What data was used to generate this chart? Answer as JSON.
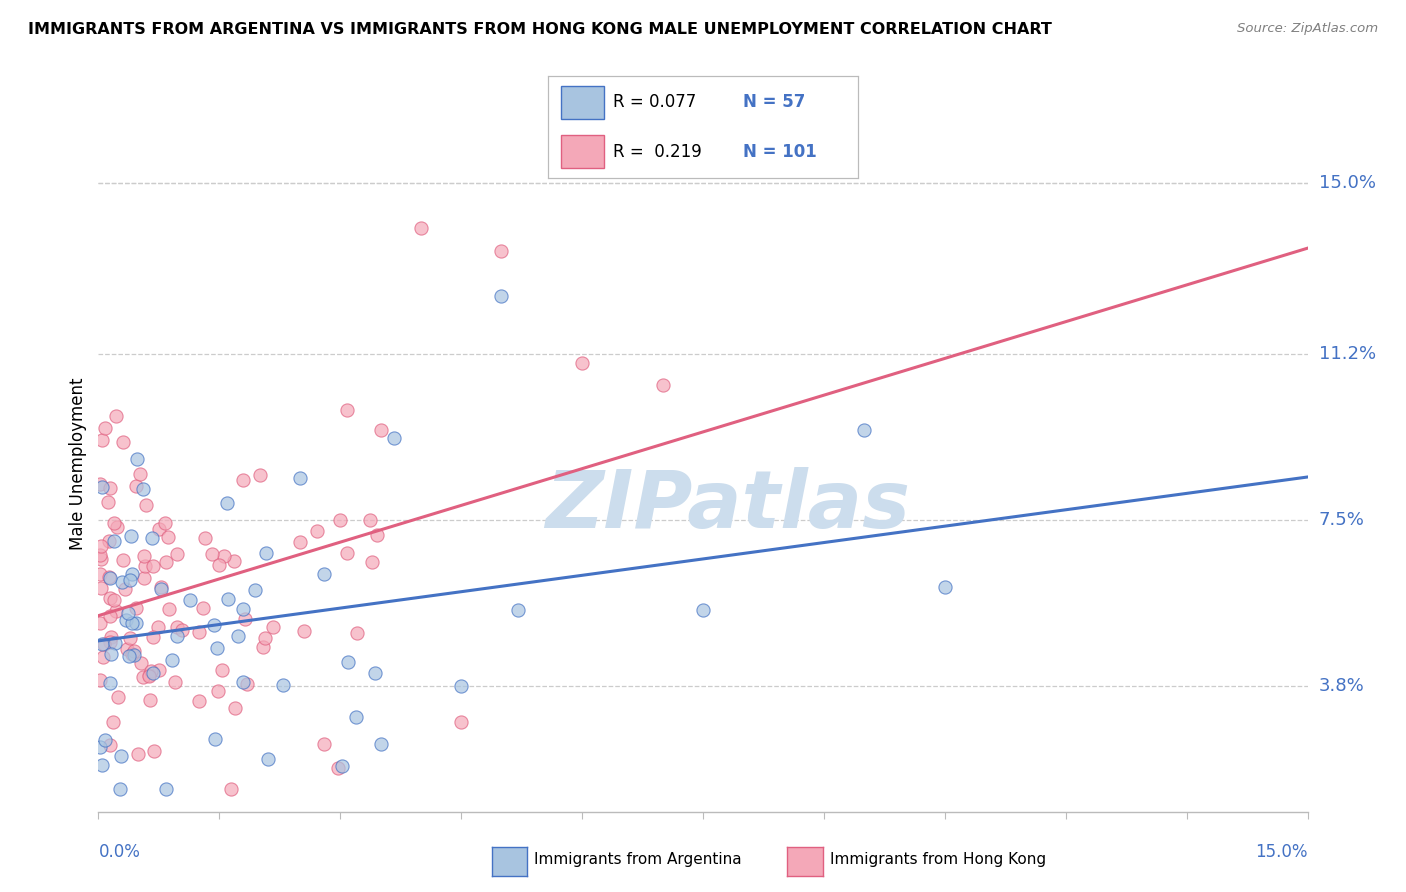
{
  "title": "IMMIGRANTS FROM ARGENTINA VS IMMIGRANTS FROM HONG KONG MALE UNEMPLOYMENT CORRELATION CHART",
  "source": "Source: ZipAtlas.com",
  "ylabel": "Male Unemployment",
  "yticks": [
    3.8,
    7.5,
    11.2,
    15.0
  ],
  "ytick_labels": [
    "3.8%",
    "7.5%",
    "11.2%",
    "15.0%"
  ],
  "xmin": 0.0,
  "xmax": 15.0,
  "ymin": 1.0,
  "ymax": 16.5,
  "argentina_R": 0.077,
  "argentina_N": 57,
  "hongkong_R": 0.219,
  "hongkong_N": 101,
  "argentina_color": "#a8c4e0",
  "hongkong_color": "#f4a8b8",
  "argentina_line_color": "#4472c4",
  "hongkong_line_color": "#e06080",
  "legend_label_argentina": "Immigrants from Argentina",
  "legend_label_hongkong": "Immigrants from Hong Kong",
  "watermark_text": "ZIPatlas",
  "watermark_color": "#ccdded"
}
